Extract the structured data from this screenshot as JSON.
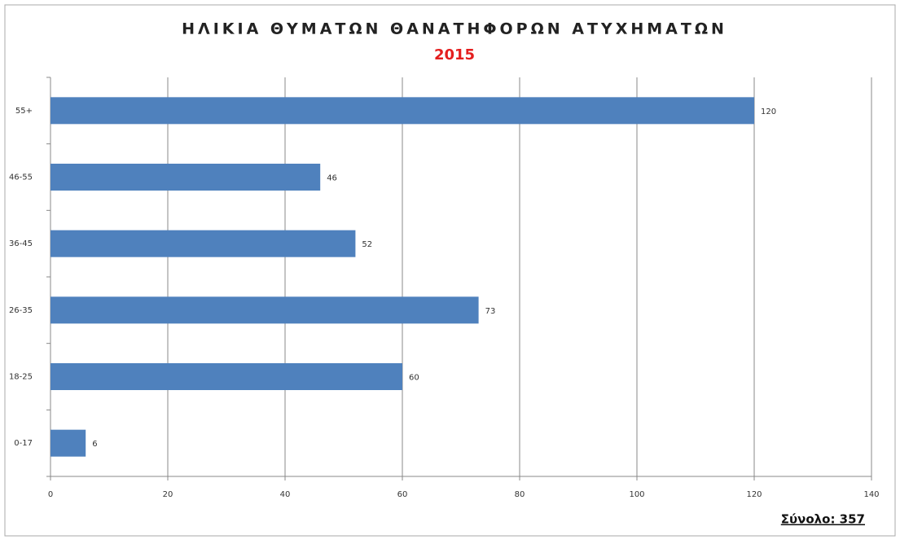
{
  "chart_data": {
    "type": "barh",
    "title": "ΗΛΙΚΙΑ ΘΥΜΑΤΩΝ ΘΑΝΑΤΗΦΟΡΩΝ ΑΤΥΧΗΜΑΤΩΝ",
    "subtitle": "2015",
    "annotation": "Σύνολο: 357",
    "categories": [
      "0-17",
      "18-25",
      "26-35",
      "36-45",
      "46-55",
      "55+"
    ],
    "values": [
      6,
      60,
      73,
      52,
      46,
      120
    ],
    "color": "#4f81bd",
    "xlim": [
      0,
      140
    ],
    "xticks": [
      0,
      20,
      40,
      60,
      80,
      100,
      120,
      140
    ],
    "grid": true
  }
}
